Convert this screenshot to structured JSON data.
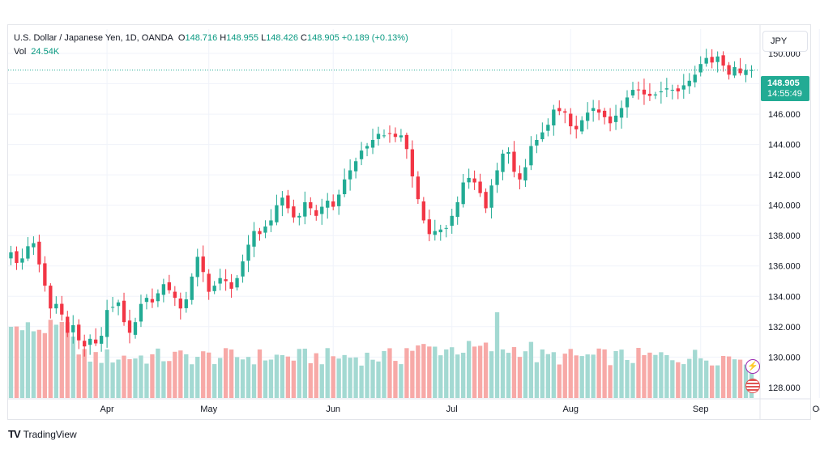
{
  "legend": {
    "symbol": "U.S. Dollar / Japanese Yen, 1D, OANDA",
    "open_label": "O",
    "open": "148.716",
    "high_label": "H",
    "high": "148.955",
    "low_label": "L",
    "low": "148.426",
    "close_label": "C",
    "close": "148.905",
    "change": "+0.189 (+0.13%)",
    "vol_label": "Vol",
    "vol": "24.54K"
  },
  "currency_button": "JPY",
  "last_price": {
    "price": "148.905",
    "countdown": "14:55:49"
  },
  "brand": {
    "logo": "TV",
    "name": "TradingView"
  },
  "icons": {
    "flash": "flash-icon",
    "flag": "us-flag-icon"
  },
  "colors": {
    "up": "#22ab94",
    "down": "#f23645",
    "vol_up": "#a3d9d2",
    "vol_down": "#f7a9a7"
  },
  "chart_data": {
    "type": "candlestick",
    "instrument": "USDJPY",
    "interval": "1D",
    "y_axis_ticks": [
      "150.000",
      "148.000",
      "146.000",
      "144.000",
      "142.000",
      "140.000",
      "138.000",
      "136.000",
      "134.000",
      "132.000",
      "130.000",
      "128.000"
    ],
    "ylim": [
      127.3,
      151.6
    ],
    "x_axis_labels": [
      "Apr",
      "May",
      "Jun",
      "Jul",
      "Aug",
      "Sep",
      "Oct"
    ],
    "month_start_index": [
      17,
      35,
      57,
      78,
      99,
      122,
      143
    ],
    "current_price": 148.905,
    "closes": [
      136.9,
      136.2,
      136.5,
      137.3,
      137.5,
      136.1,
      134.7,
      133.2,
      133.5,
      132.8,
      131.6,
      132.1,
      131.1,
      130.7,
      131.2,
      130.9,
      131.4,
      133.1,
      133.3,
      133.6,
      132.3,
      131.6,
      132.3,
      133.5,
      133.9,
      133.6,
      134.2,
      134.8,
      134.4,
      133.9,
      133.2,
      133.8,
      135.3,
      136.6,
      135.6,
      134.3,
      134.7,
      135.2,
      135.0,
      134.5,
      135.2,
      136.3,
      137.4,
      138.3,
      138.1,
      138.6,
      139.0,
      140.0,
      140.5,
      139.8,
      139.2,
      139.3,
      140.2,
      139.8,
      139.3,
      139.9,
      140.3,
      139.9,
      140.7,
      141.7,
      142.3,
      142.9,
      143.6,
      143.9,
      144.3,
      144.7,
      144.6,
      144.7,
      144.5,
      144.6,
      143.7,
      141.9,
      140.4,
      139.0,
      138.1,
      138.3,
      138.4,
      138.5,
      139.3,
      140.2,
      141.5,
      141.8,
      141.5,
      140.8,
      139.8,
      141.3,
      142.3,
      143.4,
      143.5,
      142.2,
      141.7,
      142.5,
      143.9,
      144.3,
      144.8,
      145.3,
      146.3,
      146.2,
      146.1,
      145.2,
      145.0,
      145.6,
      146.1,
      146.4,
      146.1,
      145.8,
      145.4,
      145.9,
      146.4,
      147.1,
      147.6,
      147.6,
      147.3,
      147.2,
      147.3,
      147.5,
      147.7,
      147.6,
      147.5,
      147.9,
      148.2,
      148.6,
      149.3,
      149.7,
      149.4,
      149.8,
      149.2,
      148.6,
      149.1,
      148.7,
      148.9,
      148.9
    ]
  }
}
